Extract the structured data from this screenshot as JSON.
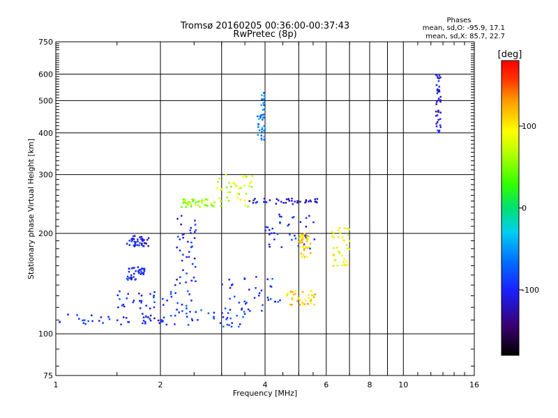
{
  "chart_data": {
    "type": "scatter",
    "title": "Tromsø 20160205 00:36:00-00:37:43",
    "subtitle": "RwPretec (8p)",
    "xlabel": "Frequency [MHz]",
    "ylabel": "Stationary phase Virtual Height [km]",
    "x_scale": "log",
    "y_scale": "log",
    "xlim": [
      1,
      16
    ],
    "ylim": [
      75,
      750
    ],
    "x_ticks": [
      1,
      2,
      4,
      6,
      8,
      10,
      16
    ],
    "x_grid": [
      1,
      2,
      3,
      4,
      5,
      6,
      7,
      8,
      9,
      10,
      16
    ],
    "y_ticks": [
      75,
      100,
      200,
      300,
      400,
      500,
      600,
      750
    ],
    "y_grid": [
      100,
      200,
      300,
      400,
      500,
      600
    ],
    "grid": true,
    "phase_legend": {
      "title": "Phases",
      "lines": [
        "mean, sd,O: -95.9, 17.1",
        "mean, sd,X:  85.7, 22.7"
      ]
    },
    "colorbar": {
      "label": "[deg]",
      "ticks": [
        100,
        0,
        -100
      ],
      "range": [
        -180,
        180
      ]
    },
    "point_clusters": [
      {
        "x_range": [
          1.02,
          2.05
        ],
        "h_range": [
          106,
          115
        ],
        "phase": -100
      },
      {
        "x_range": [
          1.6,
          1.85
        ],
        "h_range": [
          183,
          197
        ],
        "phase": -110
      },
      {
        "x_range": [
          1.6,
          1.8
        ],
        "h_range": [
          145,
          160
        ],
        "phase": -100
      },
      {
        "x_range": [
          1.5,
          2.5
        ],
        "h_range": [
          118,
          135
        ],
        "phase": -95
      },
      {
        "x_range": [
          2.0,
          3.5
        ],
        "h_range": [
          105,
          118
        ],
        "phase": -85
      },
      {
        "x_range": [
          2.2,
          2.55
        ],
        "h_range": [
          140,
          230
        ],
        "phase": -105
      },
      {
        "x_range": [
          2.3,
          2.9
        ],
        "h_range": [
          240,
          255
        ],
        "phase": 60
      },
      {
        "x_range": [
          2.9,
          3.7
        ],
        "h_range": [
          240,
          300
        ],
        "phase": 75
      },
      {
        "x_range": [
          3.6,
          5.8
        ],
        "h_range": [
          245,
          255
        ],
        "phase": -115
      },
      {
        "x_range": [
          4.0,
          5.6
        ],
        "h_range": [
          180,
          230
        ],
        "phase": -100
      },
      {
        "x_range": [
          4.6,
          5.6
        ],
        "h_range": [
          122,
          135
        ],
        "phase": 110
      },
      {
        "x_range": [
          5.0,
          5.4
        ],
        "h_range": [
          170,
          200
        ],
        "phase": 110
      },
      {
        "x_range": [
          3.0,
          4.5
        ],
        "h_range": [
          115,
          150
        ],
        "phase": -95
      },
      {
        "x_range": [
          6.2,
          7.0
        ],
        "h_range": [
          160,
          210
        ],
        "phase": 90
      },
      {
        "x_range": [
          12.4,
          12.8
        ],
        "h_range": [
          400,
          600
        ],
        "phase": -110
      },
      {
        "x_range": [
          3.8,
          4.0
        ],
        "h_range": [
          380,
          530
        ],
        "phase": -60
      }
    ]
  }
}
